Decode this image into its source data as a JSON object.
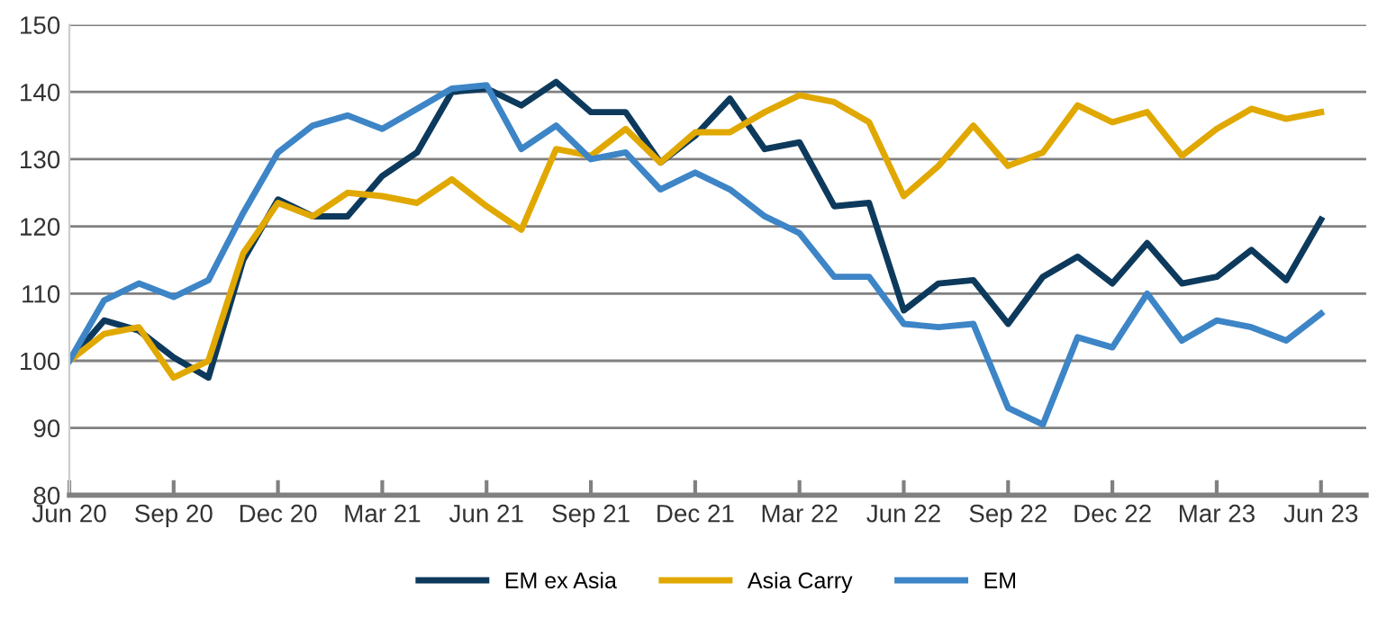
{
  "chart_data": {
    "type": "line",
    "categories": [
      "Jun 20",
      null,
      null,
      "Sep 20",
      null,
      null,
      "Dec 20",
      null,
      null,
      "Mar 21",
      null,
      null,
      "Jun 21",
      null,
      null,
      "Sep 21",
      null,
      null,
      "Dec 21",
      null,
      null,
      "Mar 22",
      null,
      null,
      "Jun 22",
      null,
      null,
      "Sep 22",
      null,
      null,
      "Dec 22",
      null,
      null,
      "Mar 23",
      null,
      null,
      "Jun 23"
    ],
    "series": [
      {
        "name": "EM ex Asia",
        "color": "#0d3a5c",
        "values": [
          100,
          106,
          104.5,
          100.5,
          97.5,
          115,
          124,
          121.5,
          121.5,
          127.5,
          131,
          140,
          140.5,
          138,
          141.5,
          137,
          137,
          129.5,
          133.5,
          139,
          131.5,
          132.5,
          123,
          123.5,
          107.5,
          111.5,
          112,
          105.5,
          112.5,
          115.5,
          111.5,
          117.5,
          111.5,
          112.5,
          116.5,
          112,
          121
        ]
      },
      {
        "name": "Asia Carry",
        "color": "#e0a800",
        "values": [
          100,
          104,
          105,
          97.5,
          100,
          116,
          123.5,
          121.5,
          125,
          124.5,
          123.5,
          127,
          123,
          119.5,
          131.5,
          130.5,
          134.5,
          129.5,
          134,
          134,
          137,
          139.5,
          138.5,
          135.5,
          124.5,
          129,
          135,
          129,
          131,
          138,
          135.5,
          137,
          130.5,
          134.5,
          137.5,
          136,
          137
        ]
      },
      {
        "name": "EM",
        "color": "#3d85c6",
        "values": [
          100,
          109,
          111.5,
          109.5,
          112,
          122,
          131,
          135,
          136.5,
          134.5,
          137.5,
          140.5,
          141,
          131.5,
          135,
          130,
          131,
          125.5,
          128,
          125.5,
          121.5,
          119,
          112.5,
          112.5,
          105.5,
          105,
          105.5,
          93,
          90.5,
          103.5,
          102,
          110,
          103,
          106,
          105,
          103,
          107
        ]
      }
    ],
    "ylim": [
      80,
      150
    ],
    "yticks": [
      80,
      90,
      100,
      110,
      120,
      130,
      140,
      150
    ],
    "grid": "y",
    "legend": "bottom",
    "marker": "none",
    "line_style": "solid"
  }
}
